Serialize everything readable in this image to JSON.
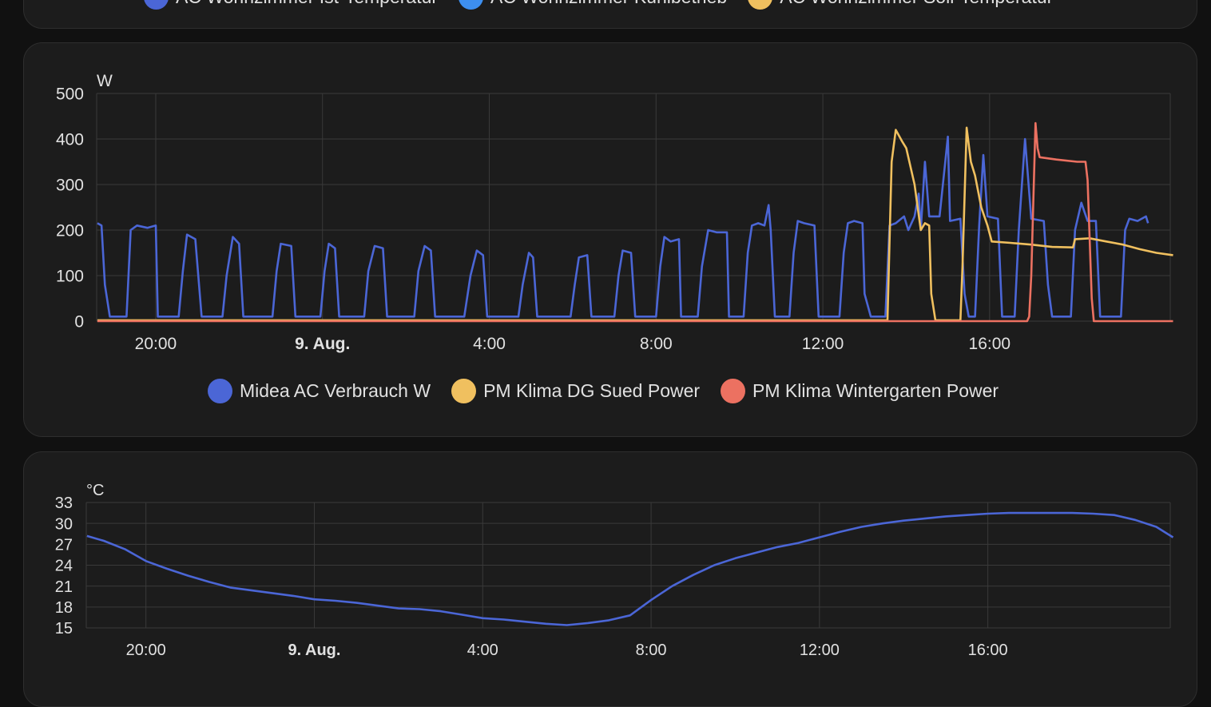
{
  "top_card": {
    "legend": [
      {
        "label": "AC Wohnzimmer Ist-Temperatur",
        "color": "#4b66d6"
      },
      {
        "label": "AC Wohnzimmer Kühlbetrieb",
        "color": "#3d8ff0"
      },
      {
        "label": "AC Wohnzimmer Soll-Temperatur",
        "color": "#f0c05f"
      }
    ]
  },
  "chart_data": [
    {
      "type": "line",
      "unit_label": "W",
      "x_ticks": [
        "20:00",
        "9. Aug.",
        "4:00",
        "8:00",
        "12:00",
        "16:00"
      ],
      "bold_tick": "9. Aug.",
      "ylim": [
        0,
        500
      ],
      "y_ticks": [
        0,
        100,
        200,
        300,
        400,
        500
      ],
      "x_range": [
        "8. Aug. 18:35",
        "9. Aug. 19:20"
      ],
      "grid": true,
      "legend_position": "bottom",
      "series": [
        {
          "name": "Midea AC Verbrauch W",
          "color": "#4b66d6",
          "points": [
            [
              18.6,
              215
            ],
            [
              18.7,
              210
            ],
            [
              18.78,
              80
            ],
            [
              18.9,
              10
            ],
            [
              19.3,
              10
            ],
            [
              19.4,
              200
            ],
            [
              19.55,
              210
            ],
            [
              19.8,
              205
            ],
            [
              20.0,
              210
            ],
            [
              20.05,
              10
            ],
            [
              20.55,
              10
            ],
            [
              20.65,
              110
            ],
            [
              20.75,
              190
            ],
            [
              20.95,
              180
            ],
            [
              21.1,
              10
            ],
            [
              21.6,
              10
            ],
            [
              21.7,
              100
            ],
            [
              21.85,
              185
            ],
            [
              22.0,
              170
            ],
            [
              22.1,
              10
            ],
            [
              22.8,
              10
            ],
            [
              22.9,
              110
            ],
            [
              23.0,
              170
            ],
            [
              23.25,
              165
            ],
            [
              23.35,
              10
            ],
            [
              23.95,
              10
            ],
            [
              24.05,
              110
            ],
            [
              24.15,
              170
            ],
            [
              24.3,
              160
            ],
            [
              24.4,
              10
            ],
            [
              25.0,
              10
            ],
            [
              25.1,
              110
            ],
            [
              25.25,
              165
            ],
            [
              25.45,
              160
            ],
            [
              25.55,
              10
            ],
            [
              26.2,
              10
            ],
            [
              26.3,
              110
            ],
            [
              26.45,
              165
            ],
            [
              26.6,
              155
            ],
            [
              26.7,
              10
            ],
            [
              27.4,
              10
            ],
            [
              27.55,
              100
            ],
            [
              27.7,
              155
            ],
            [
              27.85,
              145
            ],
            [
              27.95,
              10
            ],
            [
              28.7,
              10
            ],
            [
              28.8,
              80
            ],
            [
              28.95,
              150
            ],
            [
              29.05,
              140
            ],
            [
              29.15,
              10
            ],
            [
              29.95,
              10
            ],
            [
              30.05,
              80
            ],
            [
              30.15,
              140
            ],
            [
              30.35,
              145
            ],
            [
              30.45,
              10
            ],
            [
              31.0,
              10
            ],
            [
              31.1,
              100
            ],
            [
              31.2,
              155
            ],
            [
              31.4,
              150
            ],
            [
              31.5,
              10
            ],
            [
              32.0,
              10
            ],
            [
              32.1,
              120
            ],
            [
              32.2,
              185
            ],
            [
              32.35,
              175
            ],
            [
              32.55,
              180
            ],
            [
              32.6,
              10
            ],
            [
              33.0,
              10
            ],
            [
              33.1,
              120
            ],
            [
              33.25,
              200
            ],
            [
              33.45,
              195
            ],
            [
              33.7,
              195
            ],
            [
              33.75,
              10
            ],
            [
              34.1,
              10
            ],
            [
              34.2,
              150
            ],
            [
              34.3,
              210
            ],
            [
              34.45,
              215
            ],
            [
              34.6,
              210
            ],
            [
              34.7,
              255
            ],
            [
              34.75,
              200
            ],
            [
              34.85,
              10
            ],
            [
              35.2,
              10
            ],
            [
              35.3,
              150
            ],
            [
              35.4,
              220
            ],
            [
              35.55,
              215
            ],
            [
              35.8,
              210
            ],
            [
              35.9,
              10
            ],
            [
              36.4,
              10
            ],
            [
              36.5,
              150
            ],
            [
              36.6,
              215
            ],
            [
              36.75,
              220
            ],
            [
              36.95,
              215
            ],
            [
              37.0,
              60
            ],
            [
              37.15,
              10
            ],
            [
              37.5,
              10
            ],
            [
              37.6,
              210
            ],
            [
              37.75,
              215
            ],
            [
              37.95,
              230
            ],
            [
              38.05,
              200
            ],
            [
              38.2,
              230
            ],
            [
              38.3,
              280
            ],
            [
              38.35,
              200
            ],
            [
              38.45,
              350
            ],
            [
              38.55,
              230
            ],
            [
              38.8,
              230
            ],
            [
              39.0,
              405
            ],
            [
              39.05,
              220
            ],
            [
              39.3,
              225
            ],
            [
              39.4,
              60
            ],
            [
              39.5,
              10
            ],
            [
              39.65,
              10
            ],
            [
              39.75,
              210
            ],
            [
              39.85,
              365
            ],
            [
              39.95,
              230
            ],
            [
              40.2,
              225
            ],
            [
              40.3,
              10
            ],
            [
              40.6,
              10
            ],
            [
              40.7,
              200
            ],
            [
              40.85,
              400
            ],
            [
              41.0,
              225
            ],
            [
              41.3,
              220
            ],
            [
              41.4,
              80
            ],
            [
              41.5,
              10
            ],
            [
              41.95,
              10
            ],
            [
              42.05,
              200
            ],
            [
              42.2,
              260
            ],
            [
              42.35,
              220
            ],
            [
              42.55,
              220
            ],
            [
              42.65,
              10
            ],
            [
              43.15,
              10
            ],
            [
              43.25,
              200
            ],
            [
              43.35,
              225
            ],
            [
              43.55,
              220
            ],
            [
              43.75,
              230
            ],
            [
              43.8,
              215
            ]
          ]
        },
        {
          "name": "PM Klima DG Sued Power",
          "color": "#f0c05f",
          "points": [
            [
              18.6,
              2
            ],
            [
              37.55,
              2
            ],
            [
              37.65,
              350
            ],
            [
              37.75,
              420
            ],
            [
              37.9,
              395
            ],
            [
              38.0,
              380
            ],
            [
              38.2,
              300
            ],
            [
              38.35,
              200
            ],
            [
              38.45,
              215
            ],
            [
              38.55,
              210
            ],
            [
              38.6,
              60
            ],
            [
              38.7,
              2
            ],
            [
              39.3,
              2
            ],
            [
              39.35,
              120
            ],
            [
              39.45,
              425
            ],
            [
              39.55,
              350
            ],
            [
              39.65,
              320
            ],
            [
              39.8,
              250
            ],
            [
              39.95,
              210
            ],
            [
              40.05,
              175
            ],
            [
              40.5,
              172
            ],
            [
              41.0,
              168
            ],
            [
              41.5,
              163
            ],
            [
              42.0,
              162
            ],
            [
              42.05,
              180
            ],
            [
              42.4,
              182
            ],
            [
              42.8,
              175
            ],
            [
              43.2,
              168
            ],
            [
              43.6,
              158
            ],
            [
              44.0,
              150
            ],
            [
              44.4,
              145
            ]
          ]
        },
        {
          "name": "PM Klima Wintergarten Power",
          "color": "#ec7161",
          "points": [
            [
              18.6,
              0
            ],
            [
              40.9,
              0
            ],
            [
              40.95,
              10
            ],
            [
              41.0,
              100
            ],
            [
              41.1,
              435
            ],
            [
              41.15,
              380
            ],
            [
              41.2,
              360
            ],
            [
              41.6,
              355
            ],
            [
              42.1,
              350
            ],
            [
              42.3,
              350
            ],
            [
              42.35,
              310
            ],
            [
              42.45,
              50
            ],
            [
              42.5,
              0
            ],
            [
              44.4,
              0
            ]
          ]
        }
      ]
    },
    {
      "type": "line",
      "unit_label": "°C",
      "x_ticks": [
        "20:00",
        "9. Aug.",
        "4:00",
        "8:00",
        "12:00",
        "16:00"
      ],
      "bold_tick": "9. Aug.",
      "ylim": [
        15,
        33
      ],
      "y_ticks": [
        15,
        18,
        21,
        24,
        27,
        30,
        33
      ],
      "x_range": [
        "8. Aug. 18:35",
        "9. Aug. 19:20"
      ],
      "grid": true,
      "series": [
        {
          "color": "#4b66d6",
          "points": [
            [
              18.6,
              28.2
            ],
            [
              19.0,
              27.5
            ],
            [
              19.5,
              26.3
            ],
            [
              20.0,
              24.6
            ],
            [
              20.5,
              23.5
            ],
            [
              21.0,
              22.5
            ],
            [
              21.5,
              21.6
            ],
            [
              22.0,
              20.8
            ],
            [
              22.5,
              20.4
            ],
            [
              23.0,
              20.0
            ],
            [
              23.5,
              19.6
            ],
            [
              24.0,
              19.1
            ],
            [
              24.5,
              18.9
            ],
            [
              25.0,
              18.6
            ],
            [
              25.5,
              18.2
            ],
            [
              26.0,
              17.8
            ],
            [
              26.5,
              17.7
            ],
            [
              27.0,
              17.4
            ],
            [
              27.5,
              16.9
            ],
            [
              28.0,
              16.4
            ],
            [
              28.5,
              16.2
            ],
            [
              29.0,
              15.9
            ],
            [
              29.5,
              15.6
            ],
            [
              30.0,
              15.4
            ],
            [
              30.5,
              15.7
            ],
            [
              31.0,
              16.1
            ],
            [
              31.5,
              16.8
            ],
            [
              32.0,
              19.0
            ],
            [
              32.5,
              21.0
            ],
            [
              33.0,
              22.6
            ],
            [
              33.5,
              24.0
            ],
            [
              34.0,
              25.0
            ],
            [
              34.5,
              25.8
            ],
            [
              35.0,
              26.6
            ],
            [
              35.5,
              27.2
            ],
            [
              36.0,
              28.0
            ],
            [
              36.5,
              28.8
            ],
            [
              37.0,
              29.5
            ],
            [
              37.5,
              30.0
            ],
            [
              38.0,
              30.4
            ],
            [
              38.5,
              30.7
            ],
            [
              39.0,
              31.0
            ],
            [
              39.5,
              31.2
            ],
            [
              40.0,
              31.4
            ],
            [
              40.5,
              31.5
            ],
            [
              41.0,
              31.5
            ],
            [
              41.5,
              31.5
            ],
            [
              42.0,
              31.5
            ],
            [
              42.5,
              31.4
            ],
            [
              43.0,
              31.2
            ],
            [
              43.5,
              30.5
            ],
            [
              44.0,
              29.5
            ],
            [
              44.4,
              28.0
            ]
          ]
        }
      ]
    }
  ]
}
